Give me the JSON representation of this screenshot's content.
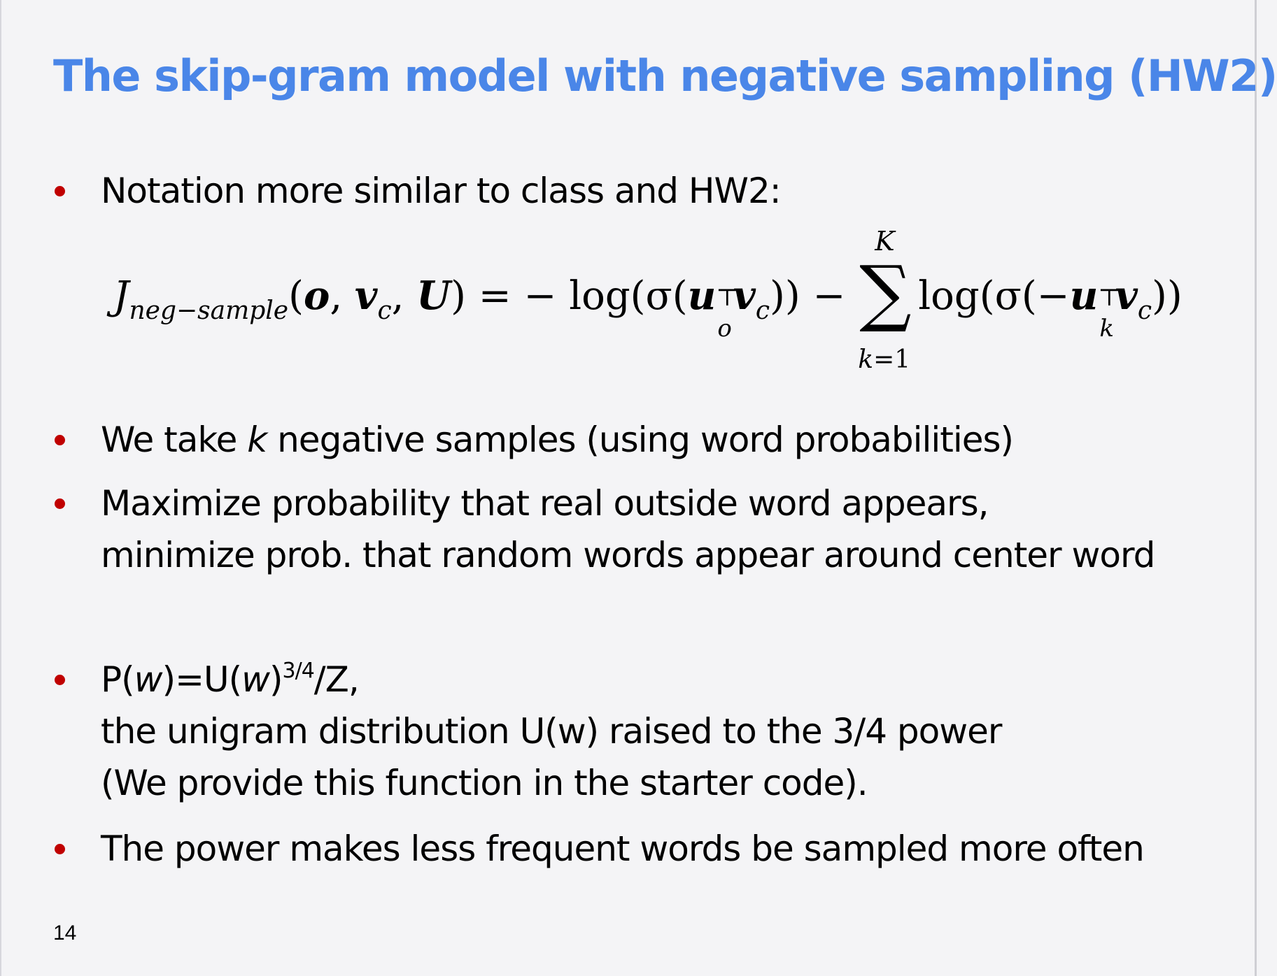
{
  "slide": {
    "title": "The skip-gram model with negative sampling (HW2)",
    "page_number": "14"
  },
  "colors": {
    "title": "#4a86e8",
    "bullet": "#c00000",
    "background": "#f4f4f6"
  },
  "bullets": [
    {
      "lines": [
        "Notation more similar to class and HW2:"
      ]
    },
    {
      "pre": "We take ",
      "italic": "k",
      "post": " negative samples (using word probabilities)"
    },
    {
      "lines": [
        "Maximize probability that real outside word appears,",
        "minimize prob. that random words appear around center word"
      ]
    },
    {
      "line1": {
        "a": "P(",
        "w1": "w",
        "b": ")=U(",
        "w2": "w",
        "c": ")",
        "power": "3/4",
        "d": "/Z,"
      },
      "lines": [
        "the unigram distribution U(w) raised to the 3/4 power",
        "(We provide this function in the starter code)."
      ]
    },
    {
      "lines": [
        "The power makes less frequent words be sampled more often"
      ]
    }
  ],
  "formula": {
    "J": "J",
    "J_sub": "neg−sample",
    "args": [
      "o",
      "v",
      "c",
      "U"
    ],
    "equals": " = − log(σ(",
    "u_o": "u",
    "o_sub": "o",
    "transpose": "⊤",
    "v": "v",
    "c_sub": "c",
    "close1": ")) −",
    "sum_symbol": "∑",
    "sum_upper": "K",
    "sum_lower_var": "k",
    "sum_lower_rest": "=1",
    "log2": "log(σ(−",
    "u_k": "u",
    "k_sub": "k",
    "close2": "))"
  }
}
